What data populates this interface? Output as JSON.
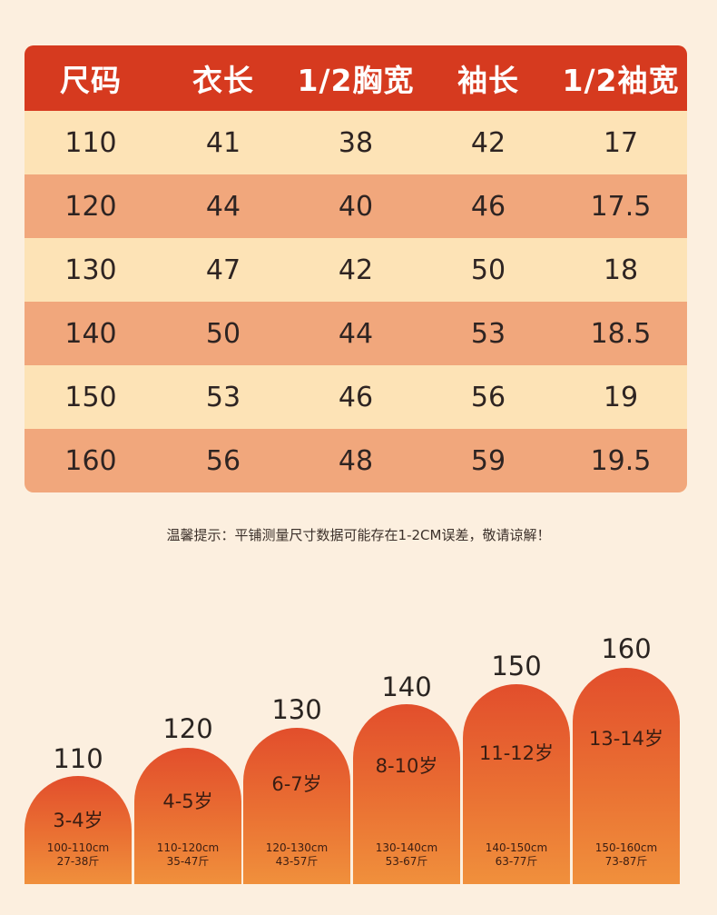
{
  "table": {
    "headers": [
      "尺码",
      "衣长",
      "1/2胸宽",
      "袖长",
      "1/2袖宽"
    ],
    "rows": [
      [
        "110",
        "41",
        "38",
        "42",
        "17"
      ],
      [
        "120",
        "44",
        "40",
        "46",
        "17.5"
      ],
      [
        "130",
        "47",
        "42",
        "50",
        "18"
      ],
      [
        "140",
        "50",
        "44",
        "53",
        "18.5"
      ],
      [
        "150",
        "53",
        "46",
        "56",
        "19"
      ],
      [
        "160",
        "56",
        "48",
        "59",
        "19.5"
      ]
    ]
  },
  "tip": "温馨提示：平铺测量尺寸数据可能存在1-2CM误差，敬请谅解！",
  "bars": [
    {
      "size": "110",
      "age": "3-4岁",
      "height_range": "100-110cm",
      "weight": "27-38斤"
    },
    {
      "size": "120",
      "age": "4-5岁",
      "height_range": "110-120cm",
      "weight": "35-47斤"
    },
    {
      "size": "130",
      "age": "6-7岁",
      "height_range": "120-130cm",
      "weight": "43-57斤"
    },
    {
      "size": "140",
      "age": "8-10岁",
      "height_range": "130-140cm",
      "weight": "53-67斤"
    },
    {
      "size": "150",
      "age": "11-12岁",
      "height_range": "140-150cm",
      "weight": "63-77斤"
    },
    {
      "size": "160",
      "age": "13-14岁",
      "height_range": "150-160cm",
      "weight": "73-87斤"
    }
  ],
  "colors": {
    "background": "#fcefdf",
    "header": "#d63a1f",
    "row_light": "#fde3b6",
    "row_dark": "#f1a77c",
    "bar_top": "#e24e2c",
    "bar_bottom": "#f0903c"
  }
}
